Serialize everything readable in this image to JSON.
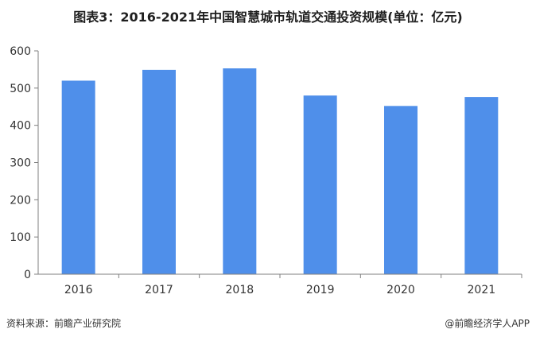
{
  "title": "图表3：2016-2021年中国智慧城市轨道交通投资规模(单位：亿元)",
  "source": "资料来源：前瞻产业研究院",
  "credit": "@前瞻经济学人APP",
  "colors": {
    "bar": "#4f8fea",
    "axis": "#7f7f7f",
    "grid": "#d9d9d9"
  },
  "chart_data": {
    "type": "bar",
    "categories": [
      "2016",
      "2017",
      "2018",
      "2019",
      "2020",
      "2021"
    ],
    "values": [
      520,
      549,
      553,
      480,
      452,
      476
    ],
    "ylim": [
      0,
      600
    ],
    "yticks": [
      "0",
      "100",
      "200",
      "300",
      "400",
      "500",
      "600"
    ],
    "grid": false
  }
}
